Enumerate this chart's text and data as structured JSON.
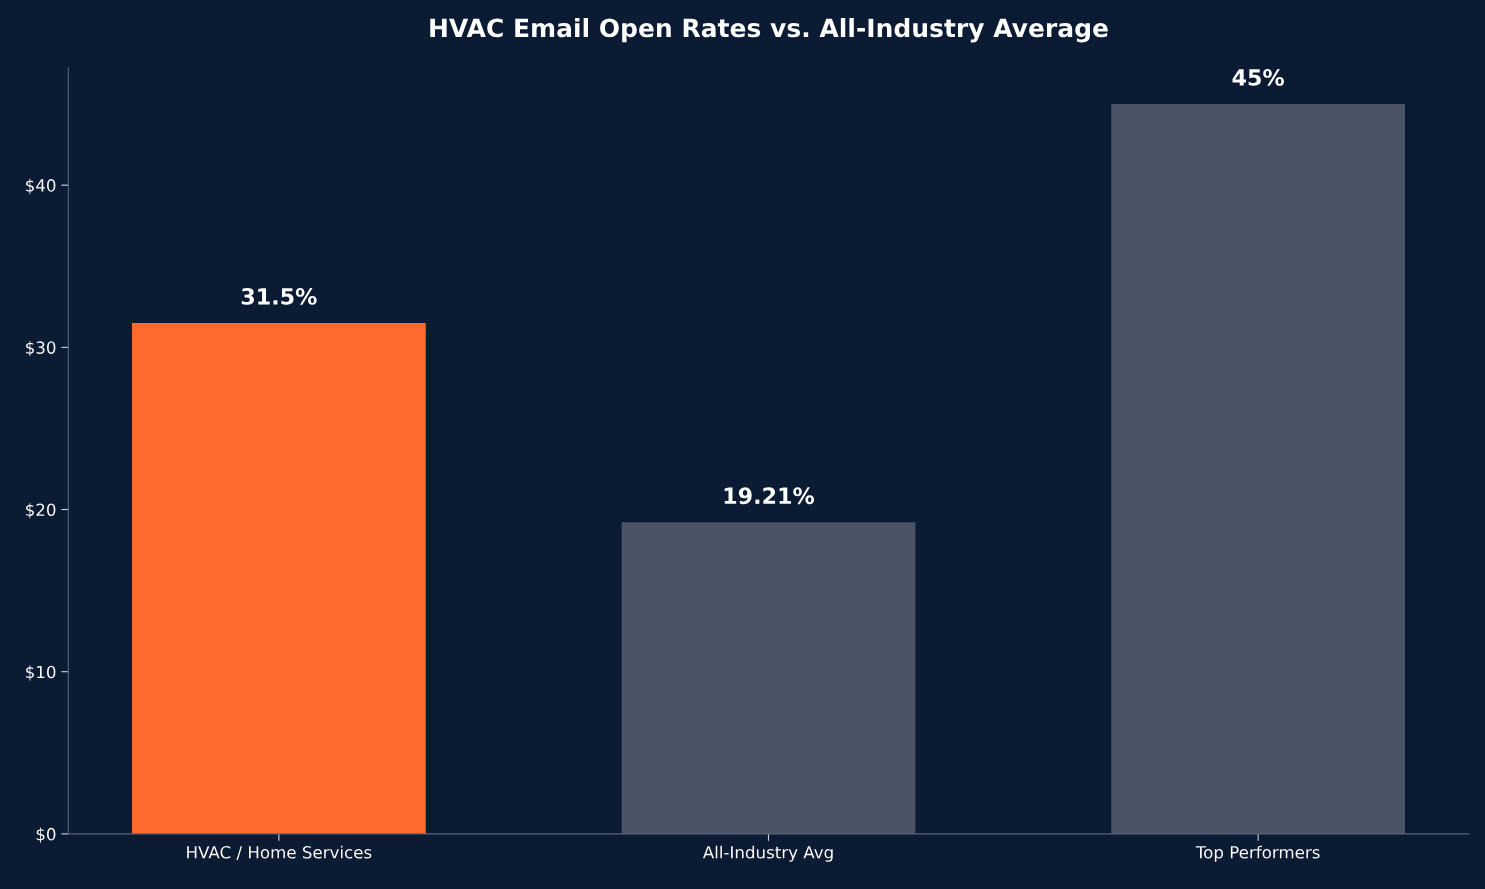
{
  "chart_data": {
    "type": "bar",
    "title": "HVAC Email Open Rates vs. All-Industry Average",
    "categories": [
      "HVAC / Home Services",
      "All-Industry Avg",
      "Top Performers"
    ],
    "values": [
      31.5,
      19.21,
      45
    ],
    "colors": [
      "#ff6b2c",
      "#4a5466",
      "#4a5466"
    ],
    "value_labels": [
      "31.5%",
      "19.21%",
      "45%"
    ],
    "ylim": [
      0,
      47.25
    ],
    "yticks": [
      {
        "value": 0,
        "label": "$0"
      },
      {
        "value": 10,
        "label": "$10"
      },
      {
        "value": 20,
        "label": "$20"
      },
      {
        "value": 30,
        "label": "$30"
      },
      {
        "value": 40,
        "label": "$40"
      }
    ],
    "grid": false,
    "legend": false
  }
}
